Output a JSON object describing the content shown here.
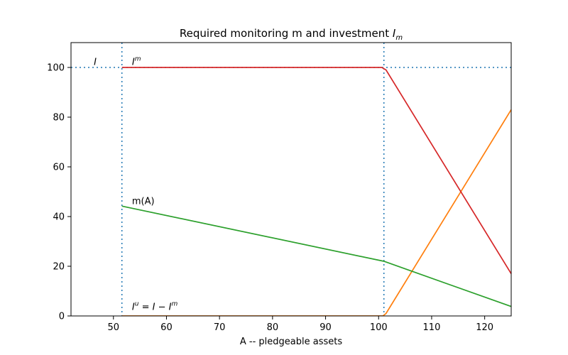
{
  "chart_data": {
    "type": "line",
    "title": "Required monitoring m and investment ",
    "title_math": "I",
    "title_math_sub": "m",
    "xlabel": "A -- pledgeable assets",
    "ylabel": "",
    "xlim": [
      42,
      125
    ],
    "ylim": [
      0,
      110
    ],
    "xticks": [
      50,
      60,
      70,
      80,
      90,
      100,
      110,
      120
    ],
    "yticks": [
      0,
      20,
      40,
      60,
      80,
      100
    ],
    "grid": false,
    "series": [
      {
        "color": "#ff7f0e",
        "x": [
          51.6,
          100.8,
          101.4,
          125
        ],
        "y": [
          0,
          0,
          1,
          83
        ]
      },
      {
        "color": "#2ca02c",
        "x": [
          51.6,
          101.0,
          125
        ],
        "y": [
          44.2,
          22.0,
          3.8
        ]
      },
      {
        "color": "#d62728",
        "x": [
          51.6,
          100.6,
          101.4,
          125
        ],
        "y": [
          100,
          100,
          99,
          17
        ]
      }
    ],
    "reference_lines": {
      "horizontal": [
        100
      ],
      "vertical": [
        51.6,
        101.0
      ],
      "color": "#1f77b4"
    },
    "annotations": [
      {
        "text": "I",
        "italic": true,
        "sup": "",
        "x": 46.3,
        "y": 101
      },
      {
        "text": "I",
        "italic": true,
        "sup": "m",
        "x": 53.5,
        "y": 101
      },
      {
        "text": "m(A)",
        "italic": false,
        "sup": "",
        "x": 53.5,
        "y": 45
      },
      {
        "text": "I",
        "italic": true,
        "sup": "u",
        "rest": " = I − I",
        "rest_sup": "m",
        "x": 53.5,
        "y": 2.5
      }
    ]
  }
}
